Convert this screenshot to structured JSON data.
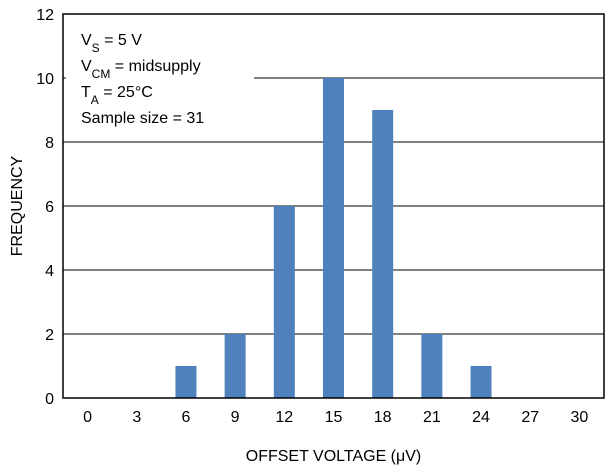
{
  "chart_data": {
    "type": "bar",
    "xlabel": "OFFSET VOLTAGE (μV)",
    "ylabel": "FREQUENCY",
    "categories": [
      "0",
      "3",
      "6",
      "9",
      "12",
      "15",
      "18",
      "21",
      "24",
      "27",
      "30"
    ],
    "values": [
      0,
      0,
      1,
      2,
      6,
      10,
      9,
      2,
      1,
      0,
      0
    ],
    "ylim": [
      0,
      12
    ],
    "yticks": [
      "0",
      "2",
      "4",
      "6",
      "8",
      "10",
      "12"
    ],
    "bar_color": "#4f81bd",
    "grid": "y-major",
    "annotations": [
      {
        "base": "V",
        "sub": "S",
        "rest": " = 5 V"
      },
      {
        "base": "V",
        "sub": "CM",
        "rest": " = midsupply"
      },
      {
        "base": "T",
        "sub": "A",
        "rest": " = 25°C"
      },
      {
        "base": "Sample size = 31",
        "sub": "",
        "rest": ""
      }
    ]
  }
}
